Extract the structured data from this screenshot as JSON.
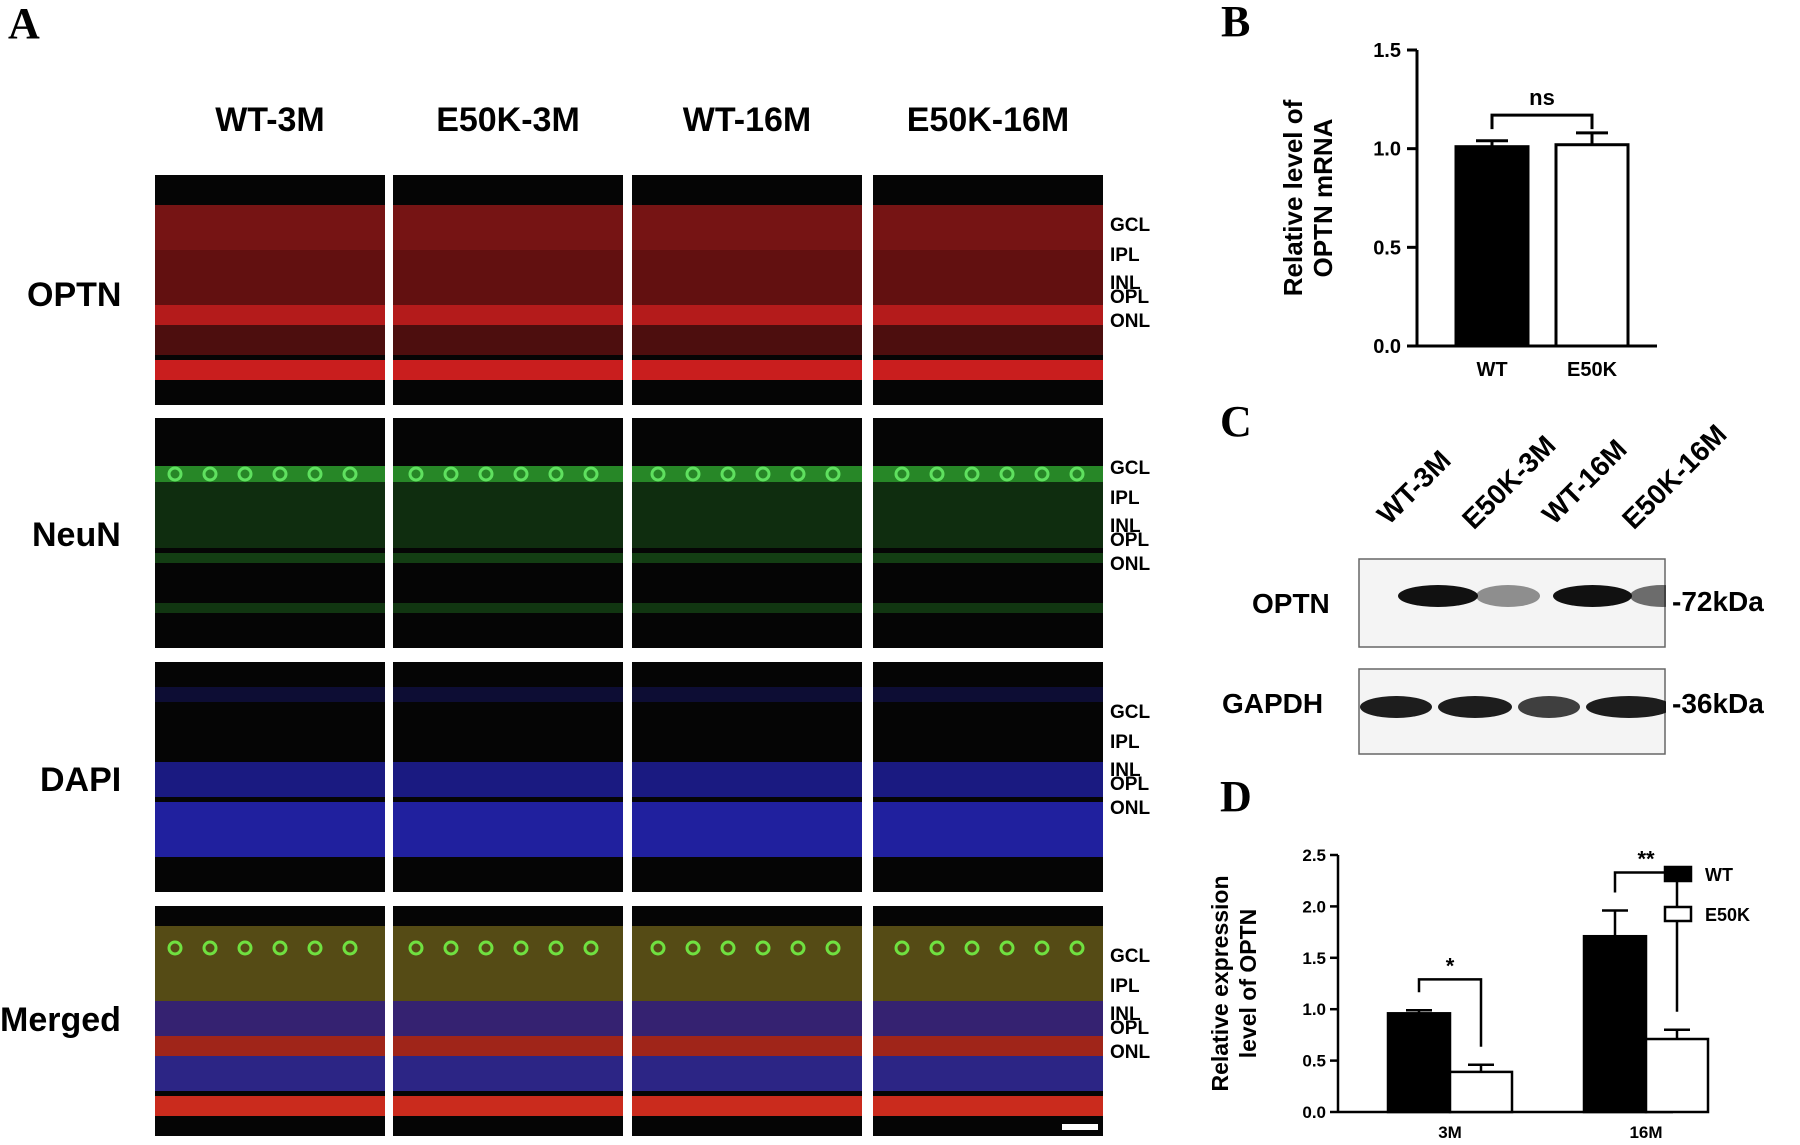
{
  "panels": {
    "a": "A",
    "b": "B",
    "c": "C",
    "d": "D"
  },
  "panel_a": {
    "columns": [
      "WT-3M",
      "E50K-3M",
      "WT-16M",
      "E50K-16M"
    ],
    "rows": [
      {
        "label": "OPTN",
        "color": "#d42020"
      },
      {
        "label": "NeuN",
        "color": "#2fa82f"
      },
      {
        "label": "DAPI",
        "color": "#2727c4"
      },
      {
        "label": "Merged",
        "color": "#a04a40"
      }
    ],
    "layers": [
      "GCL",
      "IPL",
      "INL",
      "OPL",
      "ONL"
    ]
  },
  "panel_c": {
    "lanes": [
      "WT-3M",
      "E50K-3M",
      "WT-16M",
      "E50K-16M"
    ],
    "blots": [
      {
        "label": "OPTN",
        "size": "-72kDa"
      },
      {
        "label": "GAPDH",
        "size": "-36kDa"
      }
    ]
  },
  "chart_data": [
    {
      "type": "bar",
      "panel": "B",
      "categories": [
        "WT",
        "E50K"
      ],
      "values": [
        1.01,
        1.02
      ],
      "errors": [
        0.03,
        0.06
      ],
      "ylabel": "Relative level of OPTN mRNA",
      "ylim": [
        0,
        1.5
      ],
      "yticks": [
        "0.0",
        "0.5",
        "1.0",
        "1.5"
      ],
      "annotation": "ns",
      "bar_colors": [
        "#000000",
        "#ffffff"
      ]
    },
    {
      "type": "bar",
      "panel": "D",
      "categories": [
        "3M",
        "16M"
      ],
      "series": [
        {
          "name": "WT",
          "values": [
            0.96,
            1.71
          ],
          "errors": [
            0.03,
            0.25
          ],
          "color": "#000000"
        },
        {
          "name": "E50K",
          "values": [
            0.39,
            0.71
          ],
          "errors": [
            0.07,
            0.09
          ],
          "color": "#ffffff"
        }
      ],
      "ylabel": "Relative expression level of OPTN",
      "ylim": [
        0,
        2.5
      ],
      "yticks": [
        "0.0",
        "0.5",
        "1.0",
        "1.5",
        "2.0",
        "2.5"
      ],
      "annotations": [
        "*",
        "**"
      ],
      "legend": "right"
    }
  ]
}
